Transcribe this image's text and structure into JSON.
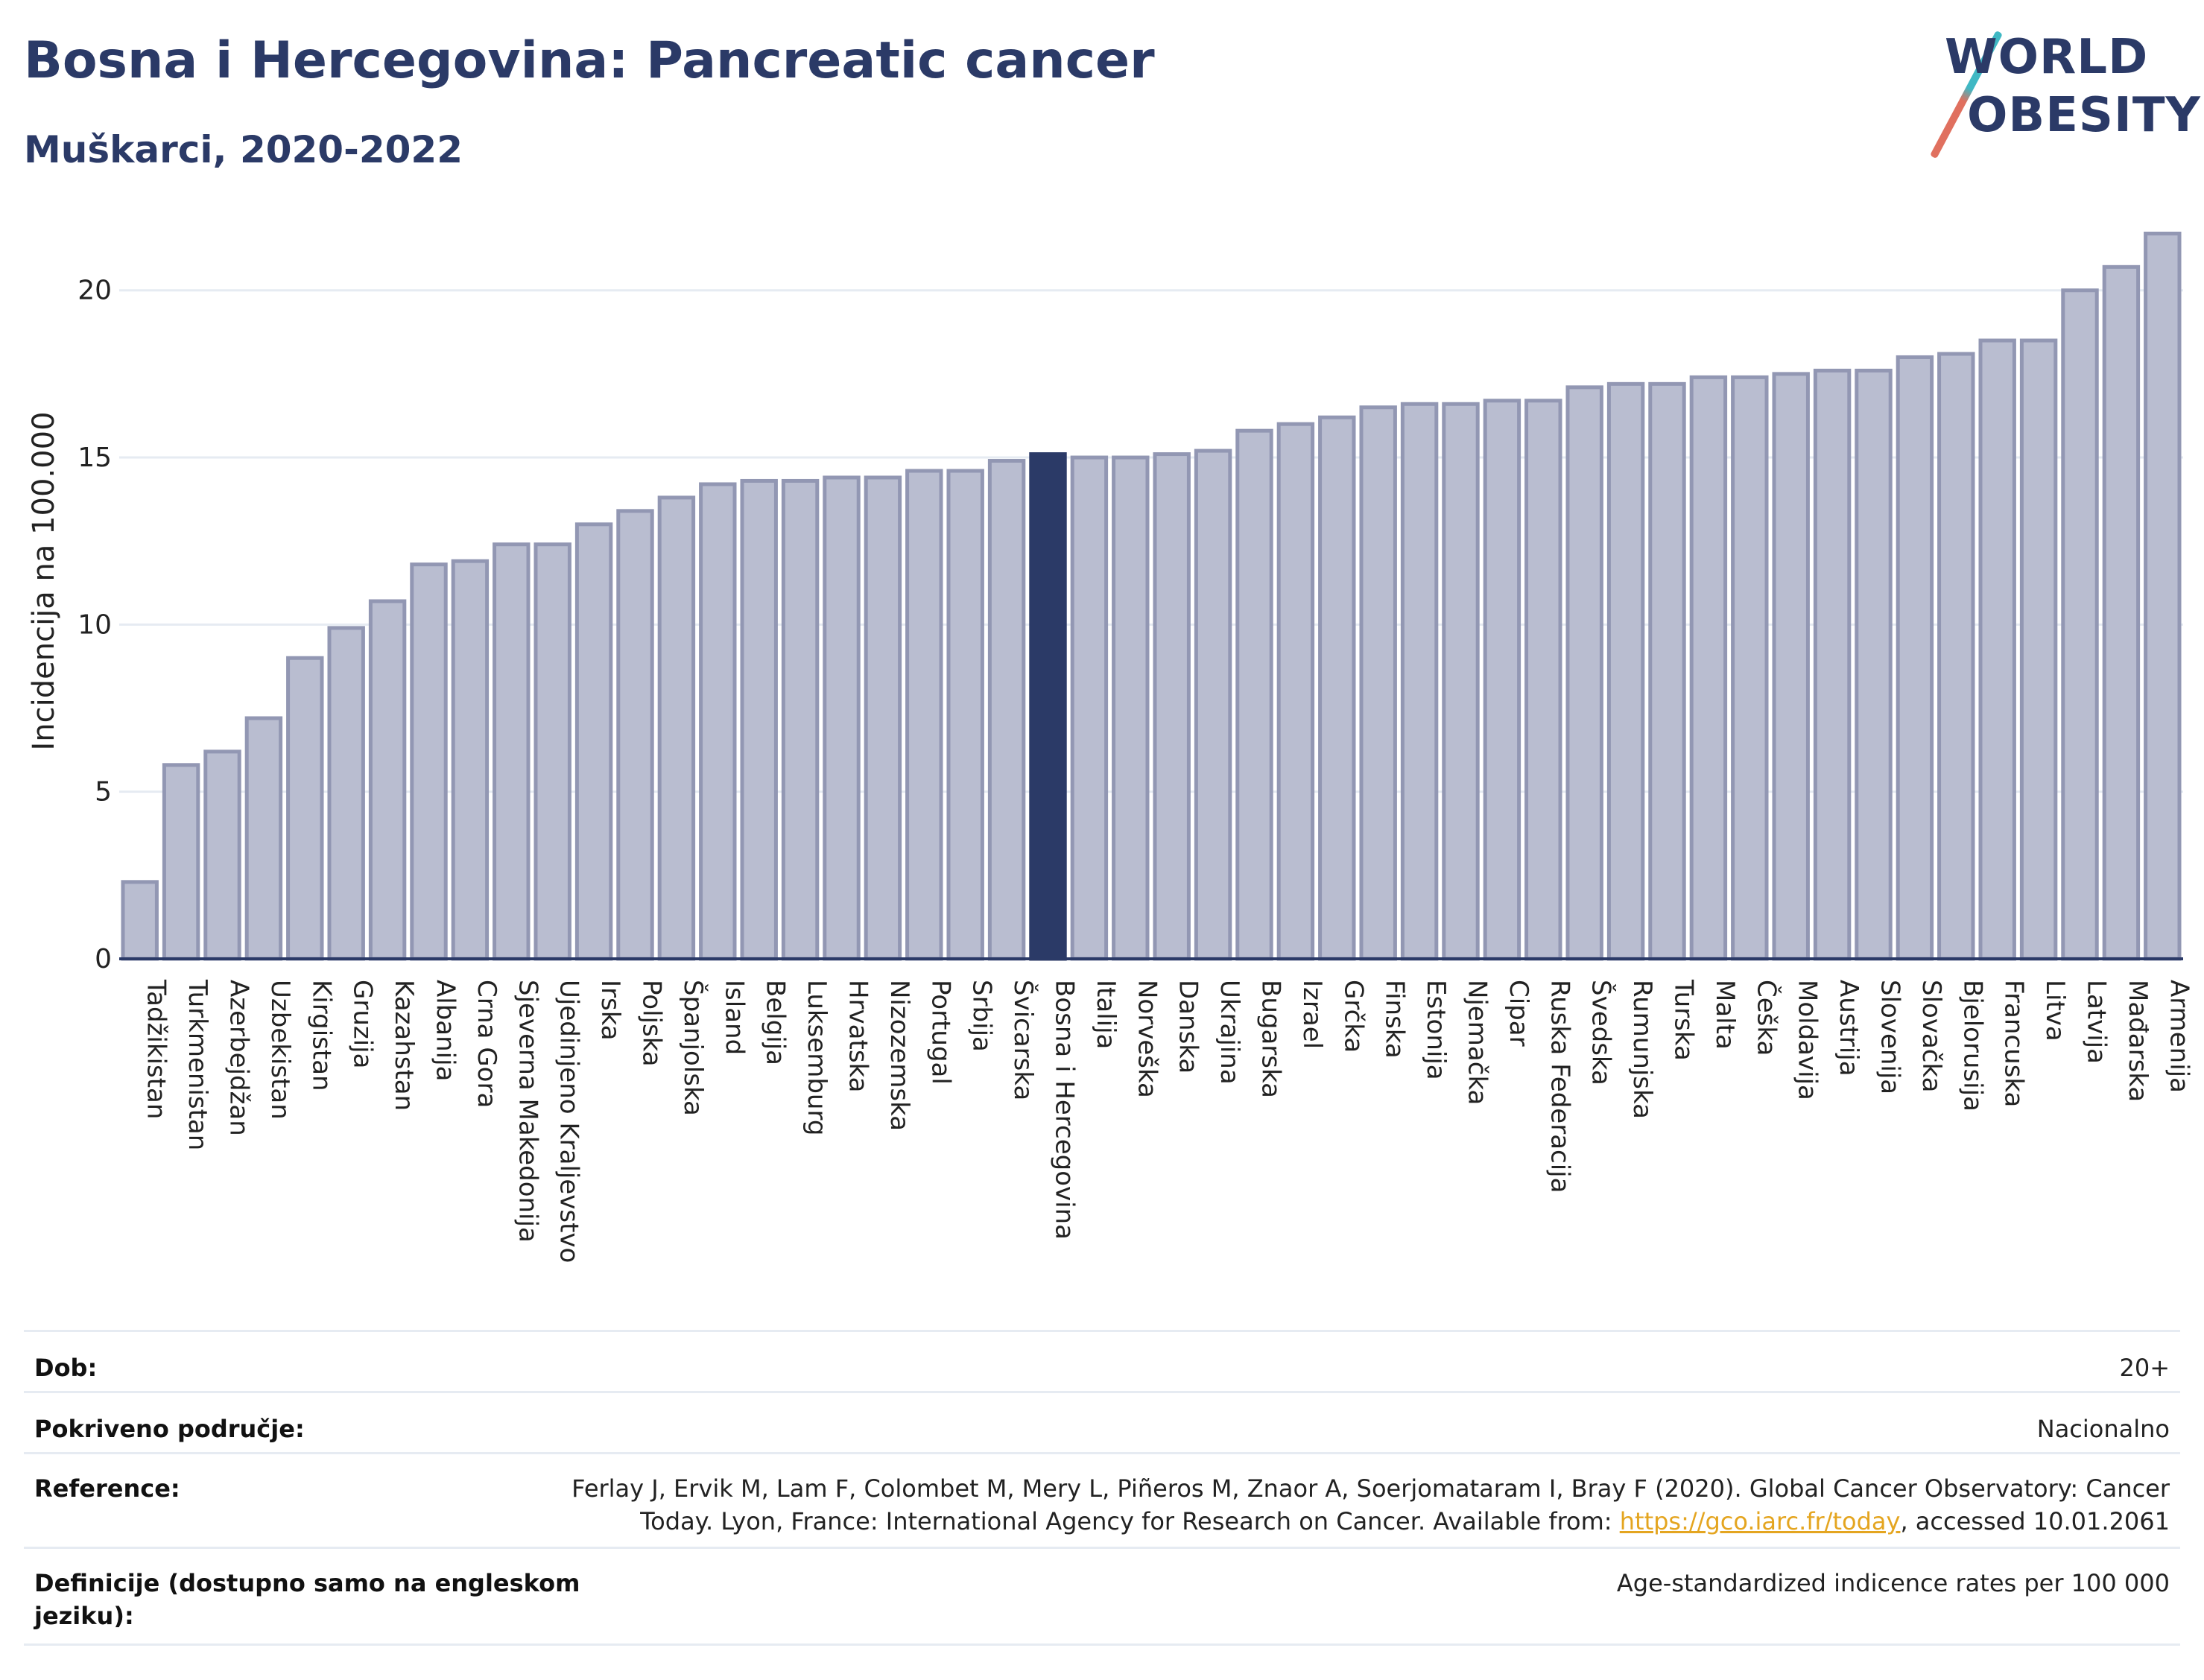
{
  "header": {
    "title": "Bosna i Hercegovina: Pancreatic cancer",
    "subtitle": "Muškarci, 2020-2022"
  },
  "logo": {
    "line1": "WORLD",
    "line2": "OBESITY"
  },
  "colors": {
    "bar": "#b9bdd0",
    "bar_border": "#9297b3",
    "highlight": "#2b3a67",
    "grid": "#e6ebf2",
    "axis": "#2b3a67"
  },
  "chart_data": {
    "type": "bar",
    "title": "Bosna i Hercegovina: Pancreatic cancer",
    "subtitle": "Muškarci, 2020-2022",
    "xlabel": "",
    "ylabel": "Incidencija na 100.000",
    "ylim": [
      0,
      22
    ],
    "yticks": [
      0,
      5,
      10,
      15,
      20
    ],
    "grid": true,
    "highlight": "Bosna i Hercegovina",
    "categories": [
      "Tadžikistan",
      "Turkmenistan",
      "Azerbejdžan",
      "Uzbekistan",
      "Kirgistan",
      "Gruzija",
      "Kazahstan",
      "Albanija",
      "Crna Gora",
      "Sjeverna Makedonija",
      "Ujedinjeno Kraljevstvo",
      "Irska",
      "Poljska",
      "Španjolska",
      "Island",
      "Belgija",
      "Luksemburg",
      "Hrvatska",
      "Nizozemska",
      "Portugal",
      "Srbija",
      "Švicarska",
      "Bosna i Hercegovina",
      "Italija",
      "Norveška",
      "Danska",
      "Ukrajina",
      "Bugarska",
      "Izrael",
      "Grčka",
      "Finska",
      "Estonija",
      "Njemačka",
      "Cipar",
      "Ruska Federacija",
      "Švedska",
      "Rumunjska",
      "Turska",
      "Malta",
      "Češka",
      "Moldavija",
      "Austrija",
      "Slovenija",
      "Slovačka",
      "Bjelorusija",
      "Francuska",
      "Litva",
      "Latvija",
      "Mađarska",
      "Armenija"
    ],
    "values": [
      2.3,
      5.8,
      6.2,
      7.2,
      9.0,
      9.9,
      10.7,
      11.8,
      11.9,
      12.4,
      12.4,
      13.0,
      13.4,
      13.8,
      14.2,
      14.3,
      14.3,
      14.4,
      14.4,
      14.6,
      14.6,
      14.9,
      15.1,
      15.0,
      15.0,
      15.1,
      15.2,
      15.8,
      16.0,
      16.2,
      16.5,
      16.6,
      16.6,
      16.7,
      16.7,
      17.1,
      17.2,
      17.2,
      17.4,
      17.4,
      17.5,
      17.6,
      17.6,
      18.0,
      18.1,
      18.5,
      18.5,
      20.0,
      20.7,
      21.7
    ]
  },
  "meta": {
    "rows": [
      {
        "key": "Dob:",
        "value": "20+"
      },
      {
        "key": "Pokriveno područje:",
        "value": "Nacionalno"
      },
      {
        "key": "Reference:",
        "value_line1": "Ferlay J, Ervik M, Lam F, Colombet M, Mery L, Piñeros M, Znaor A, Soerjomataram I, Bray F (2020). Global Cancer Observatory: Cancer",
        "value_line2_pre": "Today. Lyon, France: International Agency for Research on Cancer. Available from: ",
        "link": "https://gco.iarc.fr/today",
        "value_line2_post": ", accessed 10.01.2061"
      },
      {
        "key_line1": "Definicije (dostupno samo na engleskom",
        "key_line2": "jeziku):",
        "value": "Age-standardized indicence rates per 100 000"
      }
    ]
  }
}
